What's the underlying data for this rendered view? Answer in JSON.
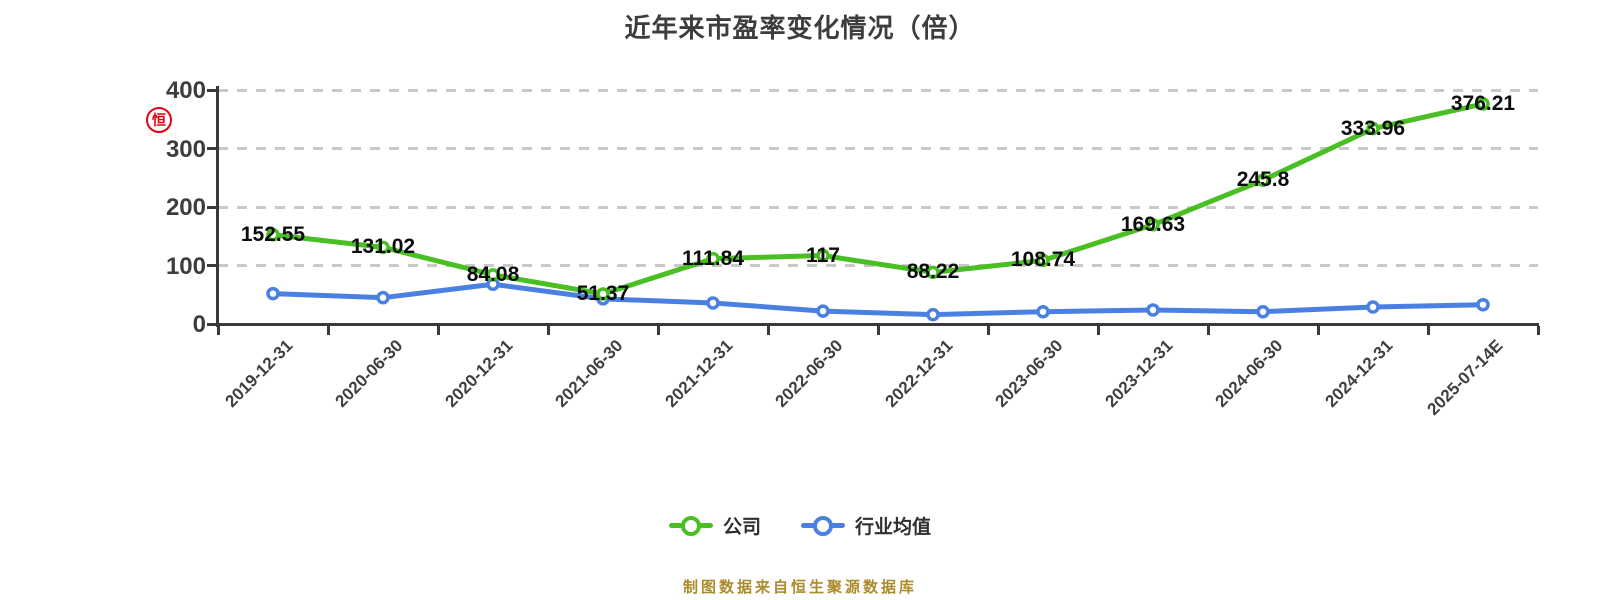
{
  "title": "近年来市盈率变化情况（倍）",
  "logo": {
    "char": "恒",
    "color": "#e60012"
  },
  "footer": "制图数据来自恒生聚源数据库",
  "legend": [
    {
      "label": "公司",
      "color": "#49bf23"
    },
    {
      "label": "行业均值",
      "color": "#4a80e1"
    }
  ],
  "chart_data": {
    "type": "line",
    "title": "近年来市盈率变化情况（倍）",
    "categories": [
      "2019-12-31",
      "2020-06-30",
      "2020-12-31",
      "2021-06-30",
      "2021-12-31",
      "2022-06-30",
      "2022-12-31",
      "2023-06-30",
      "2023-12-31",
      "2024-06-30",
      "2024-12-31",
      "2025-07-14E"
    ],
    "series": [
      {
        "name": "公司",
        "color": "#49bf23",
        "values": [
          152.55,
          131.02,
          84.08,
          51.37,
          111.84,
          117,
          88.22,
          108.74,
          169.63,
          245.8,
          333.96,
          376.21
        ],
        "show_labels": true
      },
      {
        "name": "行业均值",
        "color": "#4a80e1",
        "values": [
          52,
          45,
          68,
          43,
          36,
          22,
          16,
          21,
          24,
          21,
          29,
          33
        ],
        "show_labels": false
      }
    ],
    "ylim": [
      0,
      400
    ],
    "yticks": [
      0,
      100,
      200,
      300,
      400
    ],
    "grid": "horizontal-dashed",
    "legend_position": "bottom",
    "x_label_rotation": 45
  }
}
